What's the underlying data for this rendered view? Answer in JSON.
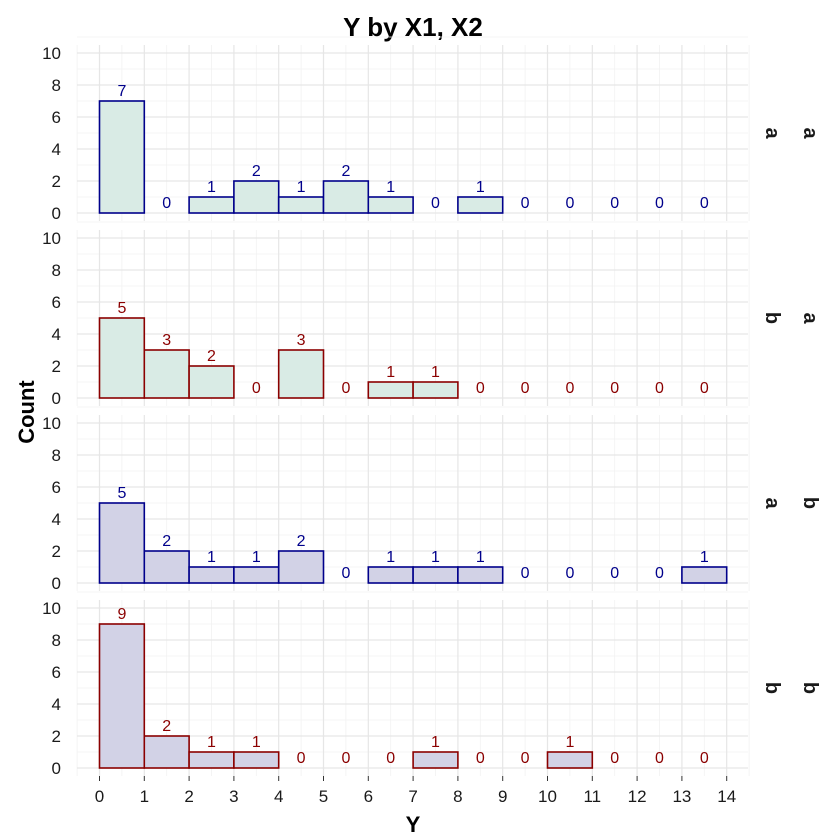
{
  "chart_data": {
    "type": "bar",
    "title": "Y by X1, X2",
    "xlabel": "Y",
    "ylabel": "Count",
    "xlim": [
      0,
      14
    ],
    "ylim": [
      0,
      10
    ],
    "x_ticks": [
      "0",
      "1",
      "2",
      "3",
      "4",
      "5",
      "6",
      "7",
      "8",
      "9",
      "10",
      "11",
      "12",
      "13",
      "14"
    ],
    "y_ticks": [
      "0",
      "2",
      "4",
      "6",
      "8",
      "10"
    ],
    "grid": true,
    "bin_edges": [
      0,
      1,
      2,
      3,
      4,
      5,
      6,
      7,
      8,
      9,
      10,
      11,
      12,
      13,
      14
    ],
    "panels": [
      {
        "x1": "a",
        "x2": "a",
        "fill": "#d9ebe5",
        "stroke": "#00008b",
        "counts": [
          7,
          0,
          1,
          2,
          1,
          2,
          1,
          0,
          1,
          0,
          0,
          0,
          0,
          0
        ]
      },
      {
        "x1": "b",
        "x2": "a",
        "fill": "#d9ebe5",
        "stroke": "#8b0000",
        "counts": [
          5,
          3,
          2,
          0,
          3,
          0,
          1,
          1,
          0,
          0,
          0,
          0,
          0,
          0
        ]
      },
      {
        "x1": "a",
        "x2": "b",
        "fill": "#d2d2e6",
        "stroke": "#00008b",
        "counts": [
          5,
          2,
          1,
          1,
          2,
          0,
          1,
          1,
          1,
          0,
          0,
          0,
          0,
          1
        ]
      },
      {
        "x1": "b",
        "x2": "b",
        "fill": "#d2d2e6",
        "stroke": "#8b0000",
        "counts": [
          9,
          2,
          1,
          1,
          0,
          0,
          0,
          1,
          0,
          0,
          1,
          0,
          0,
          0
        ]
      }
    ]
  }
}
